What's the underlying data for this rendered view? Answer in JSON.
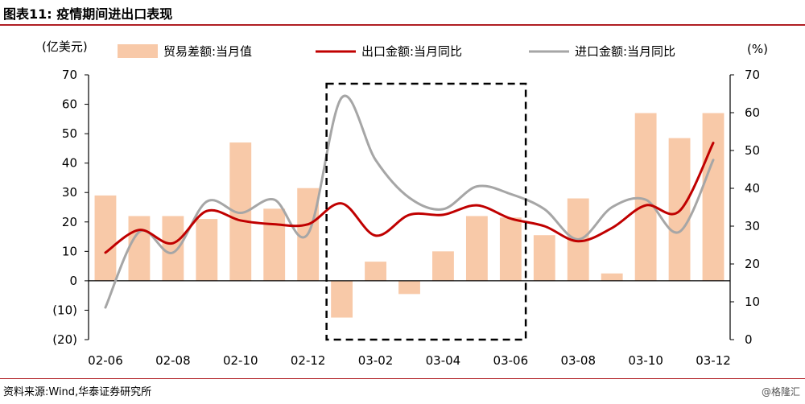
{
  "figure": {
    "title": "图表11:  疫情期间进出口表现",
    "source": "资料来源:Wind,华泰证券研究所",
    "watermark": "@格隆汇"
  },
  "colors": {
    "bar": "#f8c9a8",
    "export_line": "#c00000",
    "import_line": "#a6a6a6",
    "title_rule": "#b01e23",
    "highlight_box": "#000000"
  },
  "chart_data": {
    "type": "bar",
    "left_axis_unit": "(亿美元)",
    "right_axis_unit": "(%)",
    "left_ylim": [
      -20,
      70
    ],
    "right_ylim": [
      0,
      70
    ],
    "left_ticks": [
      "70",
      "60",
      "50",
      "40",
      "30",
      "20",
      "10",
      "0",
      "(10)",
      "(20)"
    ],
    "right_ticks": [
      "70",
      "60",
      "50",
      "40",
      "30",
      "20",
      "10",
      "0"
    ],
    "x_tick_labels": [
      "02-06",
      "02-08",
      "02-10",
      "02-12",
      "03-02",
      "03-04",
      "03-06",
      "03-08",
      "03-10",
      "03-12"
    ],
    "categories": [
      "02-06",
      "02-07",
      "02-08",
      "02-09",
      "02-10",
      "02-11",
      "02-12",
      "03-01",
      "03-02",
      "03-03",
      "03-04",
      "03-05",
      "03-06",
      "03-07",
      "03-08",
      "03-09",
      "03-10",
      "03-11",
      "03-12"
    ],
    "highlight_range": [
      "03-01",
      "03-06"
    ],
    "legend_placement": "top",
    "series": [
      {
        "name": "贸易差额:当月值",
        "kind": "bar",
        "axis": "left",
        "values": [
          29,
          22,
          22,
          21,
          47,
          24.5,
          31.5,
          -12.5,
          6.5,
          -4.5,
          10,
          22,
          21.5,
          15.5,
          28,
          2.5,
          57,
          48.5,
          57
        ]
      },
      {
        "name": "出口金额:当月同比",
        "kind": "line",
        "axis": "right",
        "values": [
          23,
          29,
          25.5,
          34,
          31.5,
          30.5,
          30.5,
          36,
          27.5,
          33,
          33,
          35.5,
          32,
          30,
          26,
          29.5,
          35.5,
          34,
          52
        ]
      },
      {
        "name": "进口金额:当月同比",
        "kind": "line",
        "axis": "right",
        "values": [
          8.5,
          28.5,
          23,
          36.5,
          33.5,
          37,
          28,
          64,
          47.5,
          37.5,
          34.5,
          40.5,
          38.5,
          34.5,
          26.5,
          35,
          37,
          28.5,
          47.5
        ]
      }
    ]
  }
}
